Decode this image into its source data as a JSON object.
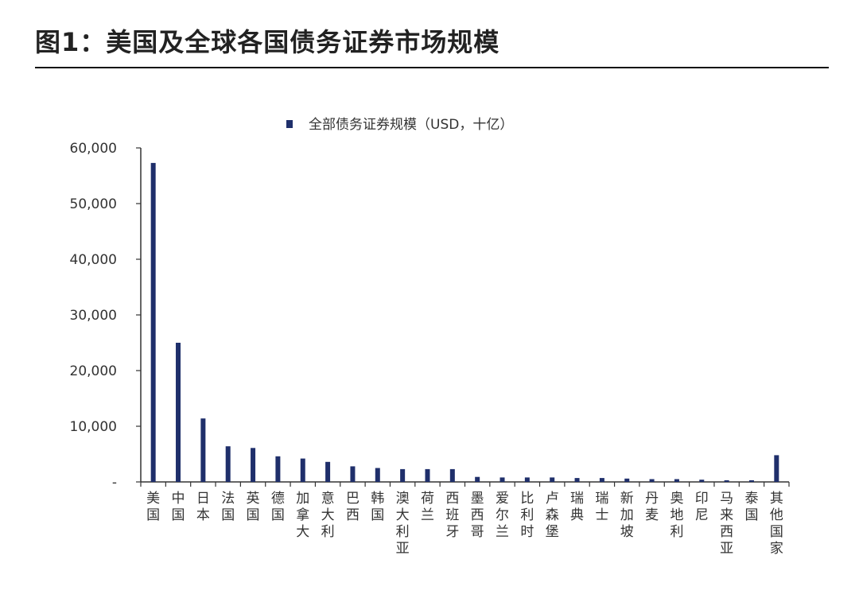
{
  "figure_title": "图1：美国及全球各国债务证券市场规模",
  "chart_data": {
    "type": "bar",
    "title": "",
    "xlabel": "",
    "ylabel": "",
    "ylim": [
      0,
      60000
    ],
    "y_ticks": [
      0,
      10000,
      20000,
      30000,
      40000,
      50000,
      60000
    ],
    "y_tick_labels": [
      "-",
      "10,000",
      "20,000",
      "30,000",
      "40,000",
      "50,000",
      "60,000"
    ],
    "legend_position": "top-center",
    "grid": false,
    "bar_color": "#1f2f6b",
    "categories": [
      "美国",
      "中国",
      "日本",
      "法国",
      "英国",
      "德国",
      "加拿大",
      "意大利",
      "巴西",
      "韩国",
      "澳大利亚",
      "荷兰",
      "西班牙",
      "墨西哥",
      "爱尔兰",
      "比利时",
      "卢森堡",
      "瑞典",
      "瑞士",
      "新加坡",
      "丹麦",
      "奥地利",
      "印尼",
      "马来西亚",
      "泰国",
      "其他国家"
    ],
    "series": [
      {
        "name": "全部债务证券规模（USD，十亿）",
        "values": [
          57300,
          25000,
          11400,
          6400,
          6100,
          4600,
          4200,
          3600,
          2800,
          2500,
          2300,
          2300,
          2300,
          900,
          800,
          800,
          800,
          700,
          700,
          600,
          500,
          500,
          400,
          300,
          300,
          4800
        ]
      }
    ]
  }
}
